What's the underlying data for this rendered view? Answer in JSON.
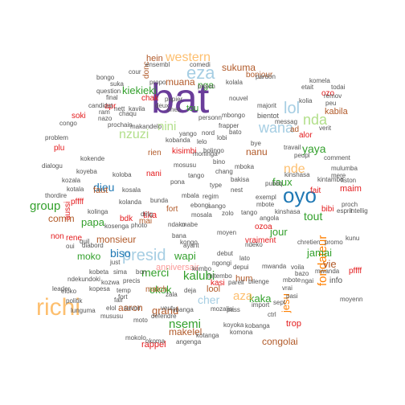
{
  "palette": {
    "purple": "#6a3d9a",
    "blue": "#1f78b4",
    "lightblue": "#a6cee3",
    "orange": "#ff7f00",
    "peach": "#fdbf6f",
    "green": "#33a02c",
    "lightgreen": "#b2df8a",
    "red": "#e31a1c",
    "pink": "#fb9a99",
    "brown": "#b15928",
    "gray": "#555555"
  },
  "words": [
    {
      "text": "bat",
      "color": "purple"
    },
    {
      "text": "richi",
      "color": "peach"
    },
    {
      "text": "presid",
      "color": "lightblue"
    },
    {
      "text": "oyo",
      "color": "blue"
    },
    {
      "text": "eza",
      "color": "lightblue"
    },
    {
      "text": "western",
      "color": "peach"
    },
    {
      "text": "wana",
      "color": "lightblue"
    },
    {
      "text": "nzuzi",
      "color": "lightgreen"
    },
    {
      "text": "nini",
      "color": "lightgreen"
    },
    {
      "text": "kiekieki",
      "color": "green"
    },
    {
      "text": "sukuma",
      "color": "brown"
    },
    {
      "text": "muana",
      "color": "brown"
    },
    {
      "text": "nda",
      "color": "lightgreen"
    },
    {
      "text": "lol",
      "color": "lightblue"
    },
    {
      "text": "nde",
      "color": "peach"
    },
    {
      "text": "group",
      "color": "green"
    },
    {
      "text": "dieu",
      "color": "blue"
    },
    {
      "text": "tout",
      "color": "green"
    },
    {
      "text": "faux",
      "color": "green"
    },
    {
      "text": "yaya",
      "color": "green"
    },
    {
      "text": "nanu",
      "color": "brown"
    },
    {
      "text": "jour",
      "color": "green"
    },
    {
      "text": "kalubi",
      "color": "green"
    },
    {
      "text": "merci",
      "color": "green"
    },
    {
      "text": "kaka",
      "color": "green"
    },
    {
      "text": "aza",
      "color": "peach"
    },
    {
      "text": "cher",
      "color": "lightblue"
    },
    {
      "text": "nsemi",
      "color": "green"
    },
    {
      "text": "grand",
      "color": "brown"
    },
    {
      "text": "aaron",
      "color": "brown"
    },
    {
      "text": "makelel",
      "color": "brown"
    },
    {
      "text": "fondateur",
      "color": "orange"
    },
    {
      "text": "jamai",
      "color": "green"
    },
    {
      "text": "vie",
      "color": "brown"
    },
    {
      "text": "biso",
      "color": "blue"
    },
    {
      "text": "moko",
      "color": "green"
    },
    {
      "text": "papa",
      "color": "green"
    },
    {
      "text": "monsieur",
      "color": "brown"
    },
    {
      "text": "comm",
      "color": "brown"
    },
    {
      "text": "wapi",
      "color": "green"
    },
    {
      "text": "okok",
      "color": "green"
    },
    {
      "text": "anniversair",
      "color": "pink"
    },
    {
      "text": "lool",
      "color": "brown"
    },
    {
      "text": "hum",
      "color": "brown"
    },
    {
      "text": "rappel",
      "color": "red"
    },
    {
      "text": "congolai",
      "color": "brown"
    },
    {
      "text": "jesu",
      "color": "orange"
    },
    {
      "text": "trop",
      "color": "red"
    },
    {
      "text": "hein",
      "color": "brown"
    },
    {
      "text": "donc",
      "color": "brown"
    },
    {
      "text": "bonjour",
      "color": "brown"
    },
    {
      "text": "nga",
      "color": "green"
    },
    {
      "text": "tou",
      "color": "green"
    },
    {
      "text": "kisimbi",
      "color": "red"
    },
    {
      "text": "soki",
      "color": "red"
    },
    {
      "text": "chak",
      "color": "red"
    },
    {
      "text": "kabila",
      "color": "brown"
    },
    {
      "text": "alor",
      "color": "red"
    },
    {
      "text": "bdk",
      "color": "red"
    },
    {
      "text": "tika",
      "color": "red"
    },
    {
      "text": "fort",
      "color": "brown"
    },
    {
      "text": "rene",
      "color": "red"
    },
    {
      "text": "aussi",
      "color": "red"
    },
    {
      "text": "pffff",
      "color": "red"
    },
    {
      "text": "fait",
      "color": "red"
    },
    {
      "text": "maim",
      "color": "red"
    },
    {
      "text": "vraiment",
      "color": "red"
    },
    {
      "text": "kasi",
      "color": "red"
    },
    {
      "text": "ozoa",
      "color": "red"
    },
    {
      "text": "nani",
      "color": "red"
    },
    {
      "text": "faut",
      "color": "brown"
    },
    {
      "text": "rien",
      "color": "brown"
    },
    {
      "text": "match",
      "color": "brown"
    },
    {
      "text": "mai",
      "color": "brown"
    },
    {
      "text": "ad",
      "color": "brown"
    },
    {
      "text": "plu",
      "color": "red"
    },
    {
      "text": "non",
      "color": "red"
    },
    {
      "text": "pffff",
      "color": "red"
    },
    {
      "text": "info",
      "color": "gray"
    },
    {
      "text": "bibi",
      "color": "red"
    },
    {
      "text": "apr",
      "color": "red"
    },
    {
      "text": "ozo",
      "color": "red"
    },
    {
      "text": "bientot",
      "color": "gray"
    },
    {
      "text": "pardon",
      "color": "gray"
    },
    {
      "text": "etait",
      "color": "gray"
    },
    {
      "text": "bongo",
      "color": "gray"
    },
    {
      "text": "question",
      "color": "gray"
    },
    {
      "text": "candidat",
      "color": "gray"
    },
    {
      "text": "congo",
      "color": "gray"
    },
    {
      "text": "problem",
      "color": "gray"
    },
    {
      "text": "dialogu",
      "color": "gray"
    },
    {
      "text": "thordire",
      "color": "gray"
    },
    {
      "text": "leader",
      "color": "gray"
    },
    {
      "text": "politik",
      "color": "gray"
    },
    {
      "text": "lunguma",
      "color": "gray"
    },
    {
      "text": "fair",
      "color": "gray"
    },
    {
      "text": "mususu",
      "color": "gray"
    },
    {
      "text": "elol",
      "color": "gray"
    },
    {
      "text": "savoir",
      "color": "gray"
    },
    {
      "text": "pass",
      "color": "gray"
    },
    {
      "text": "verit",
      "color": "gray"
    },
    {
      "text": "comment",
      "color": "gray"
    },
    {
      "text": "todai",
      "color": "gray"
    },
    {
      "text": "remov",
      "color": "gray"
    },
    {
      "text": "peu",
      "color": "gray"
    },
    {
      "text": "nouvel",
      "color": "gray"
    },
    {
      "text": "messag",
      "color": "gray"
    },
    {
      "text": "travail",
      "color": "gray"
    },
    {
      "text": "mbongo",
      "color": "gray"
    },
    {
      "text": "personn",
      "color": "gray"
    },
    {
      "text": "majorit",
      "color": "gray"
    },
    {
      "text": "prison",
      "color": "gray"
    },
    {
      "text": "propo",
      "color": "gray"
    },
    {
      "text": "comedi",
      "color": "gray"
    },
    {
      "text": "ensembl",
      "color": "gray"
    },
    {
      "text": "cour",
      "color": "gray"
    },
    {
      "text": "suka",
      "color": "gray"
    },
    {
      "text": "final",
      "color": "gray"
    },
    {
      "text": "ram",
      "color": "gray"
    },
    {
      "text": "nazo",
      "color": "gray"
    },
    {
      "text": "prochain",
      "color": "gray"
    },
    {
      "text": "makandelo",
      "color": "gray"
    },
    {
      "text": "chaqu",
      "color": "gray"
    },
    {
      "text": "nett",
      "color": "gray"
    },
    {
      "text": "kavila",
      "color": "gray"
    },
    {
      "text": "papier",
      "color": "gray"
    },
    {
      "text": "chez",
      "color": "gray"
    },
    {
      "text": "deux",
      "color": "gray"
    },
    {
      "text": "frapper",
      "color": "gray"
    },
    {
      "text": "bye",
      "color": "gray"
    },
    {
      "text": "nord",
      "color": "gray"
    },
    {
      "text": "peupl",
      "color": "gray"
    },
    {
      "text": "kunu",
      "color": "gray"
    },
    {
      "text": "esprit",
      "color": "gray"
    },
    {
      "text": "kintambo",
      "color": "gray"
    },
    {
      "text": "mere",
      "color": "gray"
    },
    {
      "text": "fiston",
      "color": "gray"
    },
    {
      "text": "kinshasa",
      "color": "gray"
    },
    {
      "text": "mulumba",
      "color": "gray"
    },
    {
      "text": "proch",
      "color": "gray"
    },
    {
      "text": "intellig",
      "color": "gray"
    },
    {
      "text": "chretien",
      "color": "gray"
    },
    {
      "text": "promo",
      "color": "gray"
    },
    {
      "text": "mwanda",
      "color": "gray"
    },
    {
      "text": "ngai",
      "color": "gray"
    },
    {
      "text": "mbote",
      "color": "gray"
    },
    {
      "text": "vrai",
      "color": "gray"
    },
    {
      "text": "moyenn",
      "color": "gray"
    },
    {
      "text": "voila",
      "color": "gray"
    },
    {
      "text": "bazo",
      "color": "gray"
    },
    {
      "text": "pasi",
      "color": "gray"
    },
    {
      "text": "parell",
      "color": "gray"
    },
    {
      "text": "bilenge",
      "color": "gray"
    },
    {
      "text": "import",
      "color": "gray"
    },
    {
      "text": "sept",
      "color": "gray"
    },
    {
      "text": "ctrl",
      "color": "gray"
    },
    {
      "text": "deja",
      "color": "gray"
    },
    {
      "text": "okoma",
      "color": "gray"
    },
    {
      "text": "angenga",
      "color": "gray"
    },
    {
      "text": "mokolo",
      "color": "gray"
    },
    {
      "text": "mozalisi",
      "color": "gray"
    },
    {
      "text": "zala",
      "color": "gray"
    },
    {
      "text": "libanga",
      "color": "gray"
    },
    {
      "text": "defendre",
      "color": "gray"
    },
    {
      "text": "moto",
      "color": "gray"
    },
    {
      "text": "eloko",
      "color": "gray"
    },
    {
      "text": "ndekundoki",
      "color": "gray"
    },
    {
      "text": "kombo",
      "color": "gray"
    },
    {
      "text": "mitembo",
      "color": "gray"
    },
    {
      "text": "oui",
      "color": "gray"
    },
    {
      "text": "photo",
      "color": "gray"
    },
    {
      "text": "dirig",
      "color": "gray"
    },
    {
      "text": "bunda",
      "color": "gray"
    },
    {
      "text": "kongo",
      "color": "gray"
    },
    {
      "text": "debut",
      "color": "gray"
    },
    {
      "text": "depui",
      "color": "gray"
    },
    {
      "text": "ngongi",
      "color": "gray"
    },
    {
      "text": "mwanda",
      "color": "gray"
    },
    {
      "text": "zolo",
      "color": "gray"
    },
    {
      "text": "nest",
      "color": "gray"
    },
    {
      "text": "chang",
      "color": "gray"
    },
    {
      "text": "bakisa",
      "color": "gray"
    },
    {
      "text": "type",
      "color": "gray"
    },
    {
      "text": "mbote",
      "color": "gray"
    },
    {
      "text": "bino",
      "color": "gray"
    },
    {
      "text": "mabe",
      "color": "gray"
    },
    {
      "text": "mosala",
      "color": "gray"
    },
    {
      "text": "regim",
      "color": "gray"
    },
    {
      "text": "ayant",
      "color": "gray"
    },
    {
      "text": "lato",
      "color": "gray"
    },
    {
      "text": "ndeko",
      "color": "gray"
    },
    {
      "text": "publiq",
      "color": "gray"
    },
    {
      "text": "exempl",
      "color": "gray"
    },
    {
      "text": "bolingo",
      "color": "gray"
    },
    {
      "text": "tango",
      "color": "gray"
    },
    {
      "text": "angola",
      "color": "gray"
    },
    {
      "text": "kinshasa",
      "color": "gray"
    },
    {
      "text": "quil",
      "color": "gray"
    },
    {
      "text": "diabord",
      "color": "gray"
    },
    {
      "text": "just",
      "color": "gray"
    },
    {
      "text": "sima",
      "color": "gray"
    },
    {
      "text": "precis",
      "color": "gray"
    },
    {
      "text": "bon",
      "color": "gray"
    },
    {
      "text": "temp",
      "color": "gray"
    },
    {
      "text": "fort",
      "color": "gray"
    },
    {
      "text": "veut",
      "color": "gray"
    },
    {
      "text": "bana",
      "color": "gray"
    },
    {
      "text": "ndako",
      "color": "gray"
    },
    {
      "text": "pona",
      "color": "gray"
    },
    {
      "text": "tango",
      "color": "gray"
    },
    {
      "text": "mbala",
      "color": "gray"
    },
    {
      "text": "mosusu",
      "color": "gray"
    },
    {
      "text": "moninga",
      "color": "gray"
    },
    {
      "text": "kobanda",
      "color": "gray"
    },
    {
      "text": "yango",
      "color": "gray"
    },
    {
      "text": "lelo",
      "color": "gray"
    },
    {
      "text": "lobi",
      "color": "gray"
    },
    {
      "text": "bato",
      "color": "gray"
    },
    {
      "text": "mboka",
      "color": "gray"
    },
    {
      "text": "ebongi",
      "color": "gray"
    },
    {
      "text": "sango",
      "color": "gray"
    },
    {
      "text": "moyen",
      "color": "gray"
    },
    {
      "text": "kolanda",
      "color": "gray"
    },
    {
      "text": "kosala",
      "color": "gray"
    },
    {
      "text": "koloba",
      "color": "gray"
    },
    {
      "text": "kokende",
      "color": "gray"
    },
    {
      "text": "koyeba",
      "color": "gray"
    },
    {
      "text": "kozala",
      "color": "gray"
    },
    {
      "text": "kotala",
      "color": "gray"
    },
    {
      "text": "kolinga",
      "color": "gray"
    },
    {
      "text": "kosenga",
      "color": "gray"
    },
    {
      "text": "kobeta",
      "color": "gray"
    },
    {
      "text": "kozwa",
      "color": "gray"
    },
    {
      "text": "kopesa",
      "color": "gray"
    },
    {
      "text": "kobanga",
      "color": "gray"
    },
    {
      "text": "komona",
      "color": "gray"
    },
    {
      "text": "koyoka",
      "color": "gray"
    },
    {
      "text": "kotanga",
      "color": "gray"
    },
    {
      "text": "kolia",
      "color": "gray"
    },
    {
      "text": "komela",
      "color": "gray"
    },
    {
      "text": "kolala",
      "color": "gray"
    }
  ]
}
